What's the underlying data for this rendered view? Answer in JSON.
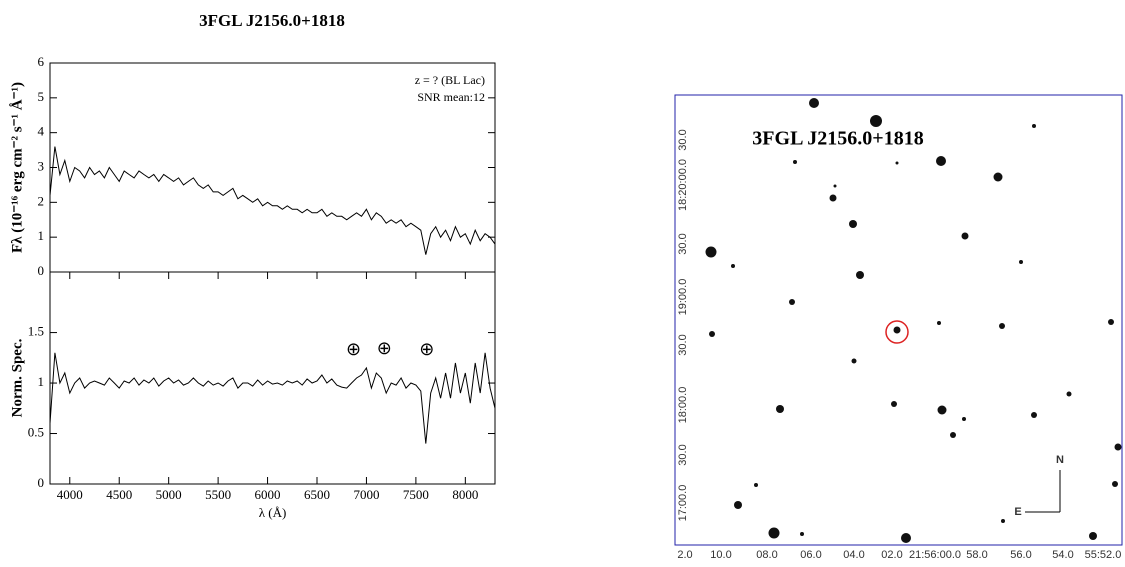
{
  "title": "3FGL J2156.0+1818",
  "chart_data": [
    {
      "type": "line",
      "ylabel": "Fλ (10⁻¹⁶ erg cm⁻² s⁻¹ Å⁻¹)",
      "annotations_text": [
        "z = ? (BL Lac)",
        "SNR mean:12"
      ],
      "xlim": [
        3800,
        8300
      ],
      "ylim": [
        0,
        6
      ],
      "yticks": [
        0,
        1,
        2,
        3,
        4,
        5,
        6
      ],
      "x": [
        3800,
        3850,
        3900,
        3950,
        4000,
        4050,
        4100,
        4150,
        4200,
        4250,
        4300,
        4350,
        4400,
        4450,
        4500,
        4550,
        4600,
        4650,
        4700,
        4750,
        4800,
        4850,
        4900,
        4950,
        5000,
        5050,
        5100,
        5150,
        5200,
        5250,
        5300,
        5350,
        5400,
        5450,
        5500,
        5550,
        5600,
        5650,
        5700,
        5750,
        5800,
        5850,
        5900,
        5950,
        6000,
        6050,
        6100,
        6150,
        6200,
        6250,
        6300,
        6350,
        6400,
        6450,
        6500,
        6550,
        6600,
        6650,
        6700,
        6750,
        6800,
        6850,
        6900,
        6950,
        7000,
        7050,
        7100,
        7150,
        7200,
        7250,
        7300,
        7350,
        7400,
        7450,
        7500,
        7550,
        7600,
        7650,
        7700,
        7750,
        7800,
        7850,
        7900,
        7950,
        8000,
        8050,
        8100,
        8150,
        8200,
        8250,
        8300
      ],
      "series": [
        {
          "color": "#000000",
          "values": [
            2.2,
            3.6,
            2.8,
            3.2,
            2.6,
            3.0,
            2.9,
            2.7,
            3.0,
            2.8,
            2.9,
            2.7,
            3.0,
            2.8,
            2.6,
            2.9,
            2.8,
            2.7,
            2.9,
            2.8,
            2.7,
            2.8,
            2.6,
            2.8,
            2.7,
            2.6,
            2.7,
            2.5,
            2.6,
            2.7,
            2.5,
            2.4,
            2.5,
            2.3,
            2.3,
            2.2,
            2.3,
            2.4,
            2.1,
            2.2,
            2.1,
            2.0,
            2.1,
            1.9,
            2.0,
            1.9,
            1.9,
            1.8,
            1.9,
            1.8,
            1.8,
            1.7,
            1.8,
            1.7,
            1.7,
            1.8,
            1.6,
            1.7,
            1.6,
            1.6,
            1.5,
            1.6,
            1.7,
            1.6,
            1.8,
            1.5,
            1.7,
            1.6,
            1.4,
            1.5,
            1.4,
            1.5,
            1.3,
            1.4,
            1.3,
            1.2,
            0.5,
            1.1,
            1.3,
            1.0,
            1.2,
            0.9,
            1.3,
            1.0,
            1.1,
            0.8,
            1.2,
            0.9,
            1.1,
            1.0,
            0.8
          ]
        }
      ]
    },
    {
      "type": "line",
      "ylabel": "Norm. Spec.",
      "xlabel": "λ (Å)",
      "xlim": [
        3800,
        8300
      ],
      "xticks": [
        4000,
        4500,
        5000,
        5500,
        6000,
        6500,
        7000,
        7500,
        8000
      ],
      "ylim": [
        0,
        2.1
      ],
      "yticks": [
        0,
        0.5,
        1,
        1.5
      ],
      "annotations": [
        {
          "text": "⊕",
          "x": 6870,
          "y": 1.32
        },
        {
          "text": "⊕",
          "x": 7180,
          "y": 1.33
        },
        {
          "text": "⊕",
          "x": 7610,
          "y": 1.32
        }
      ],
      "x": [
        3800,
        3850,
        3900,
        3950,
        4000,
        4050,
        4100,
        4150,
        4200,
        4250,
        4300,
        4350,
        4400,
        4450,
        4500,
        4550,
        4600,
        4650,
        4700,
        4750,
        4800,
        4850,
        4900,
        4950,
        5000,
        5050,
        5100,
        5150,
        5200,
        5250,
        5300,
        5350,
        5400,
        5450,
        5500,
        5550,
        5600,
        5650,
        5700,
        5750,
        5800,
        5850,
        5900,
        5950,
        6000,
        6050,
        6100,
        6150,
        6200,
        6250,
        6300,
        6350,
        6400,
        6450,
        6500,
        6550,
        6600,
        6650,
        6700,
        6750,
        6800,
        6850,
        6900,
        6950,
        7000,
        7050,
        7100,
        7150,
        7200,
        7250,
        7300,
        7350,
        7400,
        7450,
        7500,
        7550,
        7600,
        7650,
        7700,
        7750,
        7800,
        7850,
        7900,
        7950,
        8000,
        8050,
        8100,
        8150,
        8200,
        8250,
        8300
      ],
      "series": [
        {
          "color": "#000000",
          "values": [
            0.6,
            1.3,
            1.0,
            1.1,
            0.9,
            1.0,
            1.05,
            0.95,
            1.0,
            1.02,
            1.0,
            0.98,
            1.05,
            1.0,
            0.95,
            1.02,
            1.0,
            1.05,
            0.98,
            1.03,
            1.0,
            1.05,
            0.97,
            1.02,
            1.05,
            1.0,
            1.03,
            0.98,
            1.0,
            1.05,
            1.0,
            0.97,
            1.02,
            0.98,
            1.0,
            0.97,
            1.02,
            1.05,
            0.95,
            1.0,
            1.0,
            0.97,
            1.03,
            0.98,
            1.02,
            0.99,
            1.0,
            0.98,
            1.02,
            1.0,
            1.02,
            0.98,
            1.04,
            1.0,
            1.02,
            1.08,
            1.0,
            1.04,
            0.98,
            0.96,
            0.95,
            1.0,
            1.05,
            1.08,
            1.15,
            0.95,
            1.1,
            1.05,
            0.9,
            1.0,
            0.98,
            1.05,
            0.95,
            1.0,
            0.98,
            0.92,
            0.4,
            0.9,
            1.05,
            0.85,
            1.1,
            0.85,
            1.2,
            0.9,
            1.1,
            0.8,
            1.2,
            0.9,
            1.3,
            0.95,
            0.75
          ]
        }
      ]
    }
  ],
  "finder": {
    "title": "3FGL J2156.0+1818",
    "xlabels": [
      "2.0",
      "10.0",
      "08.0",
      "06.0",
      "04.0",
      "02.0",
      "21:56:00.0",
      "58.0",
      "56.0",
      "54.0",
      "55:52.0"
    ],
    "ylabels": [
      "17:00.0",
      "30.0",
      "18:00.0",
      "30.0",
      "19:00.0",
      "30.0",
      "18:20:00.0",
      "30.0"
    ],
    "north": "N",
    "east": "E"
  }
}
